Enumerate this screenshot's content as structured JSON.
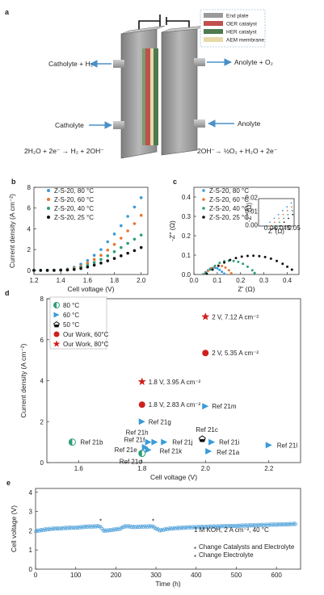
{
  "panel_a": {
    "letter": "a",
    "legend": [
      "End plate",
      "OER catalyst",
      "HER catalyst",
      "AEM membrane"
    ],
    "catholyte_out": "Catholyte + H₂",
    "anolyte_out": "Anolyte + O₂",
    "catholyte_in": "Catholyte",
    "anolyte_in": "Anolyte",
    "eq_left": "2H₂O + 2e⁻ → H₂ + 2OH⁻",
    "eq_right": "2OH⁻→ ½O₂ + H₂O + 2e⁻",
    "colors": {
      "end_plate": "#9a9a9a",
      "oer": "#c0504d",
      "her": "#4f7a4f",
      "aem": "#e8d9a8"
    }
  },
  "chart_data": [
    {
      "id": "b",
      "type": "scatter",
      "letter": "b",
      "xlabel": "Cell voltage (V)",
      "ylabel": "Current density (A cm⁻²)",
      "xlim": [
        1.2,
        2.05
      ],
      "ylim": [
        -0.4,
        8
      ],
      "xticks": [
        1.2,
        1.4,
        1.6,
        1.8,
        2.0
      ],
      "xtick_labels": [
        "1.2",
        "1.4",
        "1.6",
        "1.8",
        "2.0"
      ],
      "yticks": [
        0,
        2,
        4,
        6,
        8
      ],
      "ytick_labels": [
        "0",
        "2",
        "4",
        "6",
        "8"
      ],
      "legend_position": "top-left",
      "series": [
        {
          "name": "Z-S-20, 80 °C",
          "color": "#3a9ad9",
          "x": [
            1.2,
            1.25,
            1.3,
            1.35,
            1.4,
            1.45,
            1.5,
            1.55,
            1.6,
            1.65,
            1.7,
            1.75,
            1.8,
            1.85,
            1.9,
            1.95,
            2.0
          ],
          "y": [
            0,
            0,
            0,
            0.02,
            0.05,
            0.12,
            0.3,
            0.6,
            0.95,
            1.45,
            2.0,
            2.75,
            3.5,
            4.3,
            5.2,
            6.1,
            7.0
          ]
        },
        {
          "name": "Z-S-20, 60 °C",
          "color": "#e8772e",
          "x": [
            1.2,
            1.25,
            1.3,
            1.35,
            1.4,
            1.45,
            1.5,
            1.55,
            1.6,
            1.65,
            1.7,
            1.75,
            1.8,
            1.85,
            1.9,
            1.95,
            2.0
          ],
          "y": [
            0,
            0,
            0,
            0.01,
            0.03,
            0.08,
            0.2,
            0.4,
            0.7,
            1.05,
            1.45,
            1.95,
            2.5,
            3.1,
            3.8,
            4.5,
            5.3
          ]
        },
        {
          "name": "Z-S-20, 40 °C",
          "color": "#2e9e7a",
          "x": [
            1.2,
            1.25,
            1.3,
            1.35,
            1.4,
            1.45,
            1.5,
            1.55,
            1.6,
            1.65,
            1.7,
            1.75,
            1.8,
            1.85,
            1.9,
            1.95,
            2.0
          ],
          "y": [
            0,
            0,
            0,
            0,
            0.02,
            0.05,
            0.12,
            0.28,
            0.5,
            0.75,
            1.05,
            1.4,
            1.8,
            2.2,
            2.6,
            3.0,
            3.4
          ]
        },
        {
          "name": "Z-S-20, 25 °C",
          "color": "#111111",
          "x": [
            1.2,
            1.25,
            1.3,
            1.35,
            1.4,
            1.45,
            1.5,
            1.55,
            1.6,
            1.65,
            1.7,
            1.75,
            1.8,
            1.85,
            1.9,
            1.95,
            2.0
          ],
          "y": [
            0,
            0,
            0,
            0,
            0.01,
            0.03,
            0.08,
            0.18,
            0.32,
            0.5,
            0.7,
            0.92,
            1.15,
            1.4,
            1.65,
            1.9,
            2.2
          ]
        }
      ]
    },
    {
      "id": "c",
      "type": "scatter",
      "letter": "c",
      "xlabel": "Z' (Ω)",
      "ylabel": "-Z'' (Ω)",
      "xlim": [
        0,
        0.45
      ],
      "ylim": [
        0,
        0.45
      ],
      "xticks": [
        0,
        0.1,
        0.2,
        0.3,
        0.4
      ],
      "xtick_labels": [
        "0.0",
        "0.1",
        "0.2",
        "0.3",
        "0.4"
      ],
      "yticks": [
        0,
        0.1,
        0.2,
        0.3,
        0.4
      ],
      "ytick_labels": [
        "0.0",
        "0.1",
        "0.2",
        "0.3",
        "0.4"
      ],
      "legend_position": "top-left",
      "series": [
        {
          "name": "Z-S-20, 80 °C",
          "color": "#3a9ad9",
          "x": [
            0.04,
            0.05,
            0.06,
            0.07,
            0.08,
            0.09,
            0.1,
            0.11,
            0.12,
            0.13
          ],
          "y": [
            0.002,
            0.012,
            0.022,
            0.03,
            0.034,
            0.035,
            0.032,
            0.024,
            0.014,
            0.004
          ]
        },
        {
          "name": "Z-S-20, 60 °C",
          "color": "#e8772e",
          "x": [
            0.045,
            0.06,
            0.075,
            0.09,
            0.105,
            0.12,
            0.135,
            0.15,
            0.16
          ],
          "y": [
            0.003,
            0.018,
            0.032,
            0.042,
            0.046,
            0.044,
            0.036,
            0.022,
            0.006
          ]
        },
        {
          "name": "Z-S-20, 40 °C",
          "color": "#2e9e7a",
          "x": [
            0.05,
            0.07,
            0.09,
            0.11,
            0.13,
            0.15,
            0.17,
            0.19,
            0.21,
            0.23,
            0.25,
            0.26
          ],
          "y": [
            0.004,
            0.025,
            0.045,
            0.06,
            0.068,
            0.071,
            0.07,
            0.065,
            0.055,
            0.04,
            0.022,
            0.008
          ]
        },
        {
          "name": "Z-S-20, 25 °C",
          "color": "#111111",
          "x": [
            0.055,
            0.08,
            0.105,
            0.13,
            0.155,
            0.18,
            0.205,
            0.23,
            0.255,
            0.28,
            0.305,
            0.33,
            0.355,
            0.38,
            0.4,
            0.42
          ],
          "y": [
            0.004,
            0.025,
            0.045,
            0.062,
            0.075,
            0.085,
            0.092,
            0.096,
            0.097,
            0.095,
            0.09,
            0.082,
            0.07,
            0.055,
            0.04,
            0.025
          ]
        }
      ],
      "inset": {
        "xlim": [
          0.035,
          0.05
        ],
        "ylim": [
          0,
          0.02
        ],
        "xticks": [
          0.04,
          0.045,
          0.05
        ],
        "xtick_labels": [
          "0.04",
          "0.045",
          "0.05"
        ],
        "yticks": [
          0,
          0.01,
          0.02
        ],
        "ytick_labels": [
          "0.00",
          "0.01",
          "0.02"
        ],
        "xlabel": "Z' (Ω)",
        "ylabel": "-Z'' (Ω)"
      }
    },
    {
      "id": "d",
      "type": "scatter",
      "letter": "d",
      "xlabel": "Cell voltage (V)",
      "ylabel": "Current density (A cm⁻²)",
      "xlim": [
        1.5,
        2.3
      ],
      "ylim": [
        0,
        8
      ],
      "xticks": [
        1.6,
        1.8,
        2.0,
        2.2
      ],
      "xtick_labels": [
        "1.6",
        "1.8",
        "2.0",
        "2.2"
      ],
      "yticks": [
        0,
        2,
        4,
        6,
        8
      ],
      "ytick_labels": [
        "0",
        "2",
        "4",
        "6",
        "8"
      ],
      "legend_position": "top-left",
      "legend": [
        {
          "label": "80 °C",
          "marker": "halfcircle",
          "color": "#2e9e7a"
        },
        {
          "label": "60 °C",
          "marker": "triangle",
          "color": "#3a9ad9"
        },
        {
          "label": "50 °C",
          "marker": "pentagon",
          "color": "#111111"
        },
        {
          "label": "Our Work, 60°C",
          "marker": "circle",
          "color": "#d0201c"
        },
        {
          "label": "Our Work, 80°C",
          "marker": "star",
          "color": "#d0201c"
        }
      ],
      "points": [
        {
          "x": 2.0,
          "y": 7.12,
          "marker": "star",
          "color": "#d0201c",
          "label": "2 V, 7.12 A cm⁻²",
          "dx": 4,
          "dy": 0
        },
        {
          "x": 2.0,
          "y": 5.35,
          "marker": "circle",
          "color": "#d0201c",
          "label": "2 V, 5.35 A cm⁻²",
          "dx": 4,
          "dy": 0
        },
        {
          "x": 1.8,
          "y": 3.95,
          "marker": "star",
          "color": "#d0201c",
          "label": "1.8 V, 3.95 A cm⁻²",
          "dx": 4,
          "dy": 0
        },
        {
          "x": 1.8,
          "y": 2.83,
          "marker": "circle",
          "color": "#d0201c",
          "label": "1.8 V, 2.83 A cm⁻²",
          "dx": 4,
          "dy": 0
        },
        {
          "x": 2.0,
          "y": 2.75,
          "marker": "triangle",
          "color": "#3a9ad9",
          "label": "Ref 21m",
          "dx": 4,
          "dy": 0
        },
        {
          "x": 1.8,
          "y": 2.0,
          "marker": "triangle",
          "color": "#3a9ad9",
          "label": "Ref 21g",
          "dx": 4,
          "dy": 0
        },
        {
          "x": 1.58,
          "y": 1.0,
          "marker": "halfcircle",
          "color": "#2e9e7a",
          "label": "Ref 21b",
          "dx": 6,
          "dy": 0
        },
        {
          "x": 1.82,
          "y": 1.0,
          "marker": "triangle",
          "color": "#3a9ad9",
          "label": "Ref 21h",
          "dx": -32,
          "dy": -12
        },
        {
          "x": 1.84,
          "y": 1.0,
          "marker": "triangle",
          "color": "#3a9ad9",
          "label": "Ref 21f",
          "dx": -42,
          "dy": -3
        },
        {
          "x": 1.87,
          "y": 1.0,
          "marker": "triangle",
          "color": "#3a9ad9",
          "label": "Ref 21j",
          "dx": 6,
          "dy": 0
        },
        {
          "x": 1.81,
          "y": 0.75,
          "marker": "triangle",
          "color": "#3a9ad9",
          "label": "Ref 21e",
          "dx": -42,
          "dy": 3
        },
        {
          "x": 1.82,
          "y": 0.62,
          "marker": "triangle",
          "color": "#3a9ad9",
          "label": "Ref 21k",
          "dx": 10,
          "dy": 1
        },
        {
          "x": 1.8,
          "y": 0.45,
          "marker": "halfcircle",
          "color": "#2e9e7a",
          "label": "Ref 21d",
          "dx": -32,
          "dy": 10
        },
        {
          "x": 1.99,
          "y": 1.15,
          "marker": "pentagon",
          "color": "#111111",
          "label": "Ref 21c",
          "dx": -12,
          "dy": -12
        },
        {
          "x": 2.02,
          "y": 1.0,
          "marker": "triangle",
          "color": "#3a9ad9",
          "label": "Ref 21i",
          "dx": 5,
          "dy": 0
        },
        {
          "x": 2.01,
          "y": 0.55,
          "marker": "triangle",
          "color": "#3a9ad9",
          "label": "Ref 21a",
          "dx": 6,
          "dy": 1
        },
        {
          "x": 2.2,
          "y": 0.85,
          "marker": "triangle",
          "color": "#3a9ad9",
          "label": "Ref 21l",
          "dx": 6,
          "dy": 0
        }
      ]
    },
    {
      "id": "e",
      "type": "scatter",
      "letter": "e",
      "xlabel": "Time (h)",
      "ylabel": "Cell voltage (V)",
      "xlim": [
        0,
        660
      ],
      "ylim": [
        0,
        4.2
      ],
      "xticks": [
        0,
        100,
        200,
        300,
        400,
        500,
        600
      ],
      "xtick_labels": [
        "0",
        "100",
        "200",
        "300",
        "400",
        "500",
        "600"
      ],
      "yticks": [
        0,
        1,
        2,
        3,
        4
      ],
      "ytick_labels": [
        "0",
        "1",
        "2",
        "3",
        "4"
      ],
      "color": "#5aa7dc",
      "series": [
        {
          "x": [
            0,
            10,
            20,
            30,
            40,
            50,
            60,
            70,
            80,
            90,
            100,
            110,
            120,
            130,
            140,
            150,
            160,
            170,
            180,
            190,
            200,
            210,
            220,
            230,
            240,
            250,
            260,
            270,
            280,
            290,
            300,
            310,
            320,
            330,
            340,
            350,
            360,
            370,
            380,
            390,
            400,
            410,
            420,
            430,
            440,
            450,
            460,
            470,
            480,
            490,
            500,
            510,
            520,
            530,
            540,
            550,
            560,
            570,
            580,
            590,
            600,
            610,
            620,
            630,
            640,
            650
          ],
          "y": [
            1.98,
            2.02,
            2.05,
            2.08,
            2.1,
            2.12,
            2.12,
            2.14,
            2.15,
            2.16,
            2.16,
            2.18,
            2.2,
            2.22,
            2.22,
            2.23,
            2.24,
            2.0,
            2.02,
            2.04,
            2.08,
            2.1,
            2.22,
            2.24,
            2.2,
            2.2,
            2.21,
            2.22,
            2.22,
            2.24,
            2.12,
            2.02,
            2.06,
            2.1,
            2.12,
            2.14,
            2.15,
            2.16,
            2.18,
            2.18,
            2.19,
            2.2,
            2.2,
            2.21,
            2.22,
            2.22,
            2.23,
            2.24,
            2.24,
            2.25,
            2.25,
            2.26,
            2.27,
            2.28,
            2.28,
            2.29,
            2.3,
            2.3,
            2.31,
            2.32,
            2.32,
            2.33,
            2.33,
            2.34,
            2.35,
            2.36
          ]
        }
      ],
      "markers": [
        {
          "x": 162,
          "y": 2.5,
          "symbol": "*",
          "color": "#d0201c"
        },
        {
          "x": 293,
          "y": 2.5,
          "symbol": "*",
          "color": "#333333"
        }
      ],
      "annotation": "1 M KOH, 2 A cm⁻², 40 °C",
      "legend": [
        {
          "symbol": "*",
          "color": "#d0201c",
          "label": "Change Catalysts and Electrolyte"
        },
        {
          "symbol": "*",
          "color": "#333333",
          "label": "Change  Electrolyte"
        }
      ]
    }
  ]
}
